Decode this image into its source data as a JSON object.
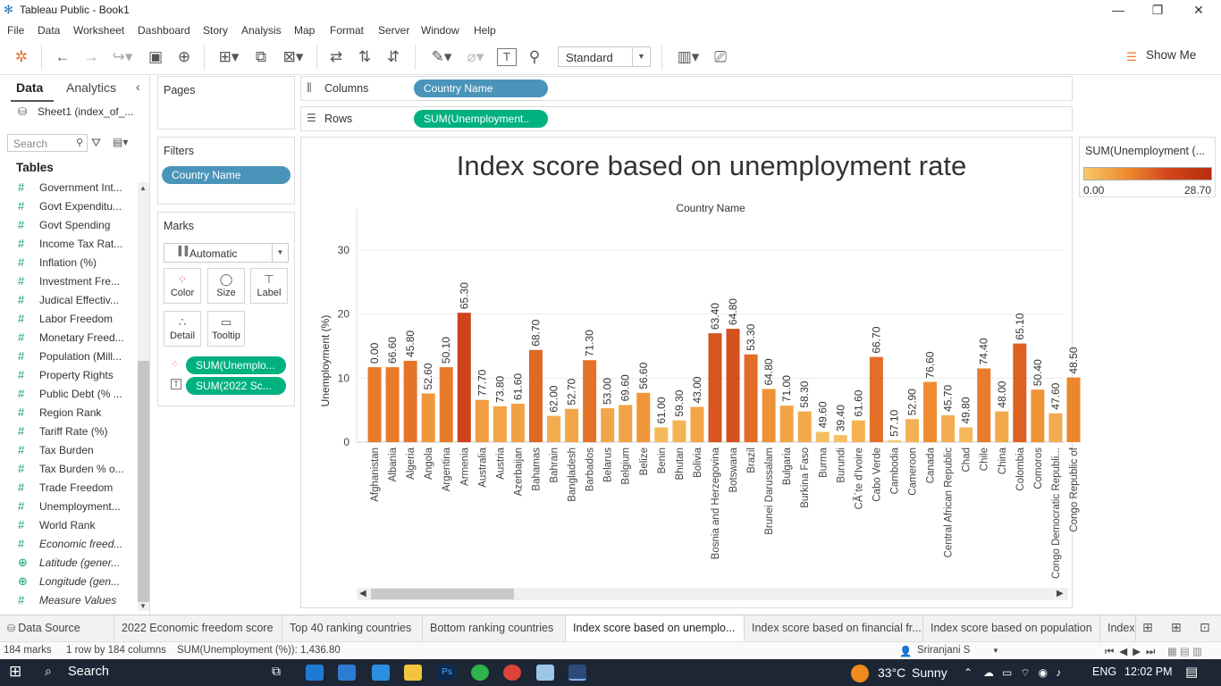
{
  "window": {
    "title": "Tableau Public - Book1"
  },
  "menu": [
    "File",
    "Data",
    "Worksheet",
    "Dashboard",
    "Story",
    "Analysis",
    "Map",
    "Format",
    "Server",
    "Window",
    "Help"
  ],
  "toolbar": {
    "fit_select": "Standard",
    "show_me": "Show Me"
  },
  "data_pane": {
    "tab_data": "Data",
    "tab_analytics": "Analytics",
    "source": "Sheet1 (index_of_...",
    "search_placeholder": "Search",
    "tables_header": "Tables",
    "fields": [
      {
        "label": "Government Int...",
        "type": "measure"
      },
      {
        "label": "Govt Expenditu...",
        "type": "measure"
      },
      {
        "label": "Govt Spending",
        "type": "measure"
      },
      {
        "label": "Income Tax Rat...",
        "type": "measure"
      },
      {
        "label": "Inflation (%)",
        "type": "measure"
      },
      {
        "label": "Investment Fre...",
        "type": "measure"
      },
      {
        "label": "Judical Effectiv...",
        "type": "measure"
      },
      {
        "label": "Labor Freedom",
        "type": "measure"
      },
      {
        "label": "Monetary Freed...",
        "type": "measure"
      },
      {
        "label": "Population (Mill...",
        "type": "measure"
      },
      {
        "label": "Property Rights",
        "type": "measure"
      },
      {
        "label": "Public Debt (% ...",
        "type": "measure"
      },
      {
        "label": "Region Rank",
        "type": "measure"
      },
      {
        "label": "Tariff Rate (%)",
        "type": "measure"
      },
      {
        "label": "Tax Burden",
        "type": "measure"
      },
      {
        "label": "Tax Burden % o...",
        "type": "measure"
      },
      {
        "label": "Trade Freedom",
        "type": "measure"
      },
      {
        "label": "Unemployment...",
        "type": "measure"
      },
      {
        "label": "World Rank",
        "type": "measure"
      },
      {
        "label": "Economic freed...",
        "type": "calc"
      },
      {
        "label": "Latitude (gener...",
        "type": "geo"
      },
      {
        "label": "Longitude (gen...",
        "type": "geo"
      },
      {
        "label": "Measure Values",
        "type": "calc"
      }
    ]
  },
  "cards": {
    "pages": "Pages",
    "filters": "Filters",
    "filter_pill": "Country Name",
    "marks": "Marks",
    "mark_type": "Automatic",
    "mark_buttons": [
      "Color",
      "Size",
      "Label",
      "Detail",
      "Tooltip"
    ],
    "mark_pills": [
      "SUM(Unemplo...",
      "SUM(2022 Sc..."
    ]
  },
  "shelves": {
    "columns_label": "Columns",
    "columns_pill": "Country Name",
    "rows_label": "Rows",
    "rows_pill": "SUM(Unemployment.."
  },
  "legend": {
    "title": "SUM(Unemployment (...",
    "min": "0.00",
    "max": "28.70"
  },
  "sheet_tabs": [
    {
      "label": "Data Source",
      "active": false
    },
    {
      "label": "2022 Economic freedom score",
      "active": false
    },
    {
      "label": "Top 40 ranking countries",
      "active": false
    },
    {
      "label": "Bottom ranking countries",
      "active": false
    },
    {
      "label": "Index score based on unemplo...",
      "active": true
    },
    {
      "label": "Index score based on financial fr...",
      "active": false
    },
    {
      "label": "Index score based on population",
      "active": false
    },
    {
      "label": "Index",
      "active": false
    }
  ],
  "status": {
    "marks": "184 marks",
    "dims": "1 row by 184 columns",
    "sum": "SUM(Unemployment (%)): 1,436.80",
    "user": "Sriranjani S"
  },
  "taskbar": {
    "search": "Search",
    "weather_temp": "33°C",
    "weather_text": "Sunny",
    "lang": "ENG",
    "time": "12:02 PM"
  },
  "chart_data": {
    "type": "bar",
    "title": "Index score based on unemployment rate",
    "xlabel": "Country Name",
    "ylabel": "Unemployment (%)",
    "ylim": [
      0,
      35
    ],
    "yticks": [
      0,
      10,
      20,
      30
    ],
    "grid": true,
    "categories": [
      "Afghanistan",
      "Albania",
      "Algeria",
      "Angola",
      "Argentina",
      "Armenia",
      "Australia",
      "Austria",
      "Azerbaijan",
      "Bahamas",
      "Bahrain",
      "Bangladesh",
      "Barbados",
      "Belarus",
      "Belgium",
      "Belize",
      "Benin",
      "Bhutan",
      "Bolivia",
      "Bosnia and Herzegovina",
      "Botswana",
      "Brazil",
      "Brunei Darussalam",
      "Bulgaria",
      "Burkina Faso",
      "Burma",
      "Burundi",
      "CÃ´te d'Ivoire",
      "Cabo Verde",
      "Cambodia",
      "Cameroon",
      "Canada",
      "Central African Republic",
      "Chad",
      "Chile",
      "China",
      "Colombia",
      "Comoros",
      "Congo Democratic Republi...",
      "Congo Republic of"
    ],
    "values": [
      11.7,
      11.7,
      12.7,
      7.6,
      11.7,
      20.2,
      6.6,
      5.6,
      6.0,
      14.4,
      4.1,
      5.2,
      12.8,
      5.3,
      5.8,
      7.7,
      2.3,
      3.4,
      5.5,
      17.0,
      17.7,
      13.7,
      8.3,
      5.7,
      4.8,
      1.6,
      1.1,
      3.4,
      13.3,
      0.3,
      3.6,
      9.4,
      4.2,
      2.3,
      11.5,
      4.8,
      15.4,
      8.2,
      4.5,
      10.1
    ],
    "score_labels": [
      "0.00",
      "66.60",
      "45.80",
      "52.60",
      "50.10",
      "65.30",
      "77.70",
      "73.80",
      "61.60",
      "68.70",
      "62.00",
      "52.70",
      "71.30",
      "53.00",
      "69.60",
      "56.60",
      "61.00",
      "59.30",
      "43.00",
      "63.40",
      "64.80",
      "53.30",
      "64.80",
      "71.00",
      "58.30",
      "49.60",
      "39.40",
      "61.60",
      "66.70",
      "57.10",
      "52.90",
      "76.60",
      "45.70",
      "49.80",
      "74.40",
      "48.00",
      "65.10",
      "50.40",
      "47.60",
      "48.50"
    ],
    "color_range": {
      "min": 0.0,
      "max": 28.7,
      "colors": [
        "#f7c86a",
        "#ee8a2e",
        "#d1461c",
        "#b72d10"
      ]
    }
  }
}
